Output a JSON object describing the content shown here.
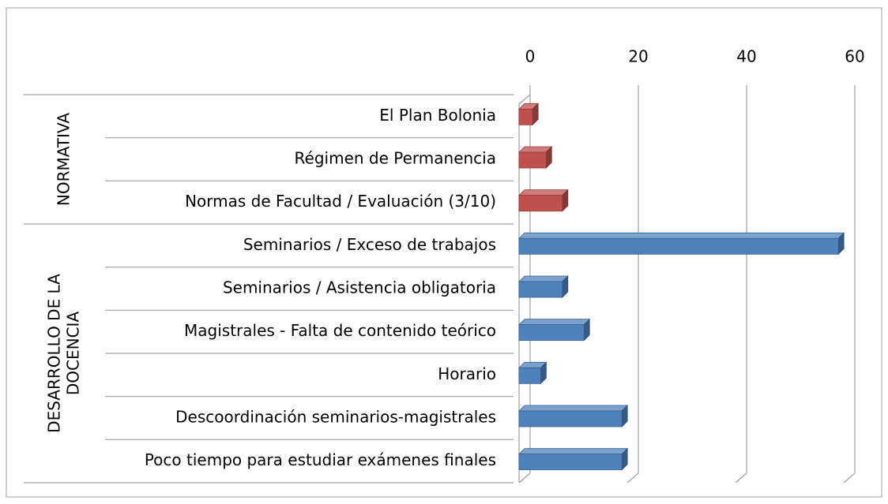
{
  "chart_data": {
    "type": "bar",
    "orientation": "horizontal",
    "three_d": true,
    "xlim": [
      0,
      60
    ],
    "xticks": [
      0,
      20,
      40,
      60
    ],
    "grid": true,
    "groups": [
      {
        "label_lines": [
          "NORMATIVA"
        ],
        "color": "#c0504d",
        "categories": [
          "El Plan Bolonia",
          "Régimen de Permanencia",
          "Normas de Facultad / Evaluación (3/10)"
        ],
        "values": [
          2.5,
          5,
          8
        ]
      },
      {
        "label_lines": [
          "DESARROLLO DE LA",
          "DOCENCIA"
        ],
        "color": "#4f81bd",
        "categories": [
          "Seminarios / Exceso de trabajos",
          "Seminarios / Asistencia obligatoria",
          "Magistrales - Falta de contenido teórico",
          "Horario",
          "Descoordinación seminarios-magistrales",
          "Poco tiempo para estudiar exámenes finales"
        ],
        "values": [
          59,
          8,
          12,
          4,
          19,
          19
        ]
      }
    ]
  }
}
